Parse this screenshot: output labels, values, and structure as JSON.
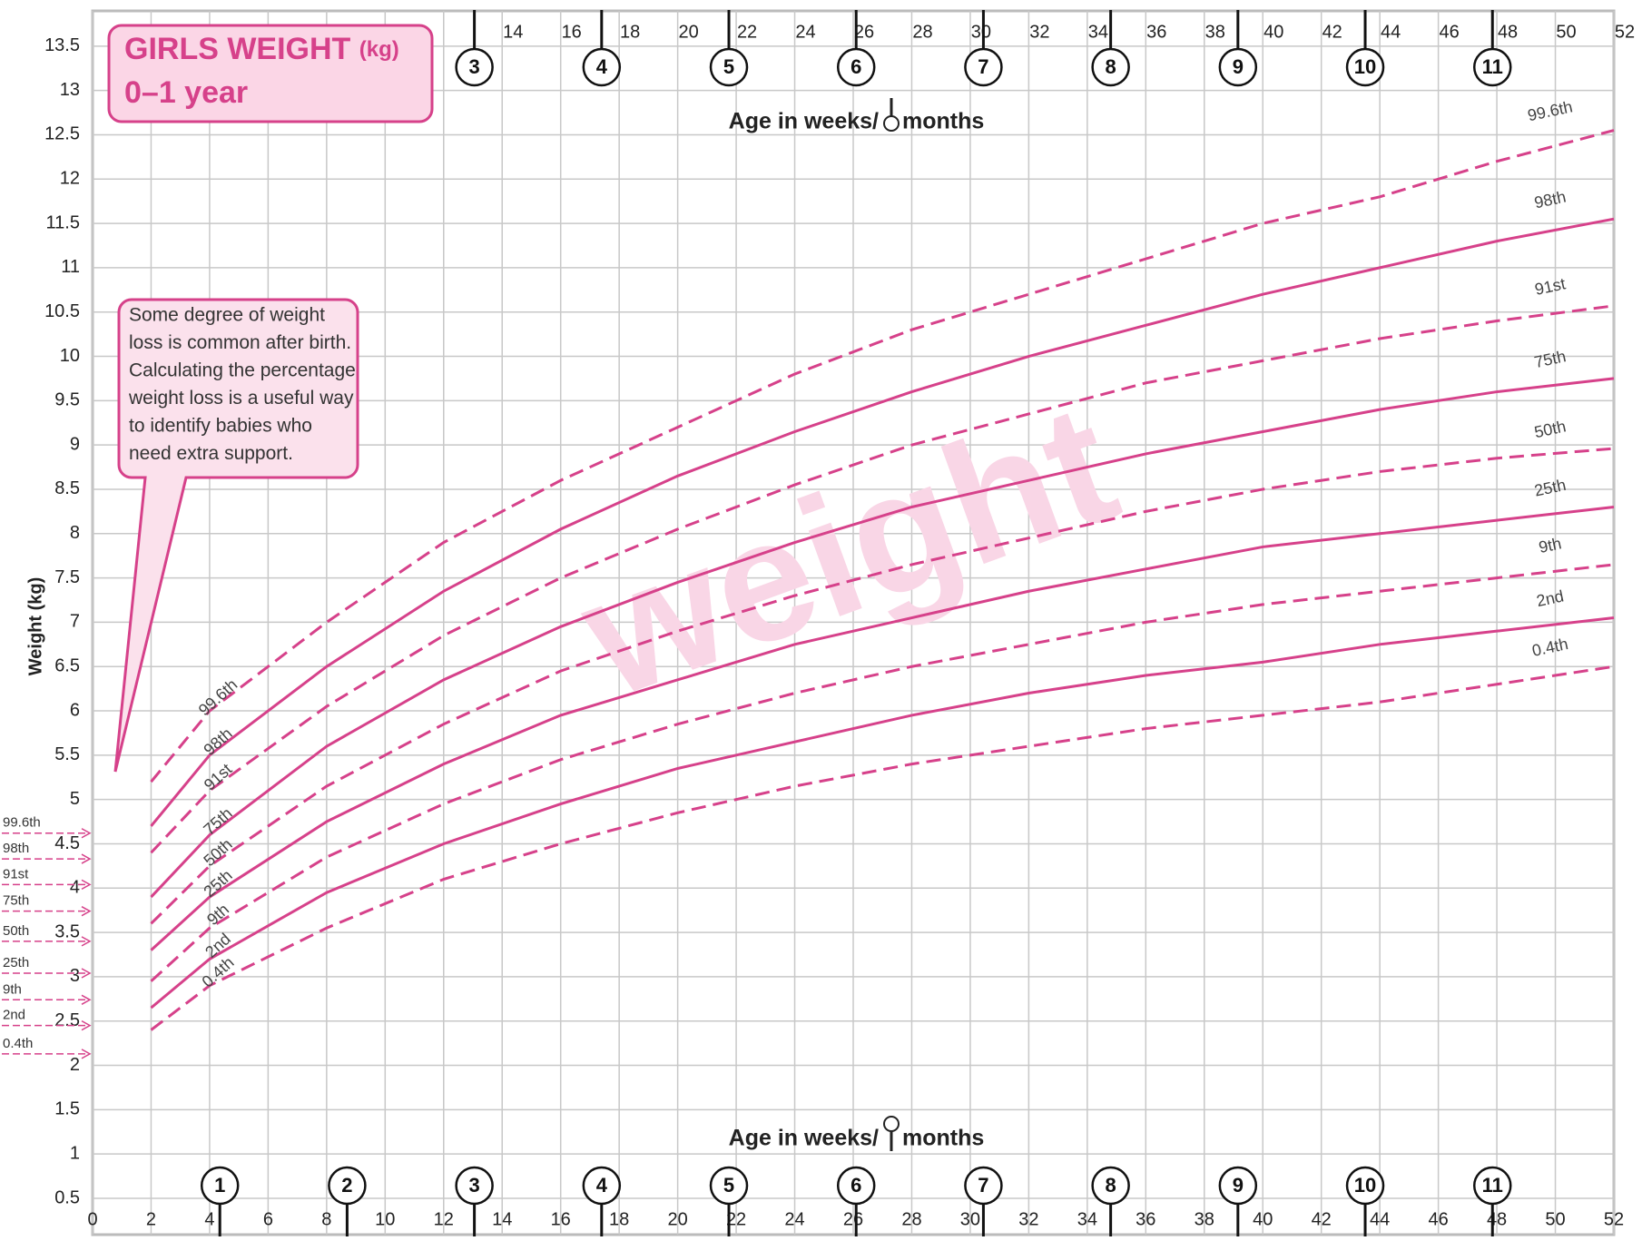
{
  "chart_data": {
    "type": "line",
    "title": "GIRLS WEIGHT",
    "title_unit": "(kg)",
    "subtitle": "0–1 year",
    "note": [
      "Some degree of weight",
      "loss is common after birth.",
      "Calculating the percentage",
      "weight loss is a useful way",
      "to identify babies who",
      "need extra support."
    ],
    "x_label": "Age in weeks/",
    "x_label_months": "months",
    "y_label": "Weight (kg)",
    "watermark": "weight",
    "color": "#d6418a",
    "x": [
      2,
      4,
      8,
      12,
      16,
      20,
      24,
      28,
      32,
      36,
      40,
      44,
      48,
      52
    ],
    "series": [
      {
        "name": "99.6th",
        "dashed": true,
        "values": [
          5.2,
          6.0,
          7.0,
          7.9,
          8.6,
          9.2,
          9.8,
          10.3,
          10.7,
          11.1,
          11.5,
          11.8,
          12.2,
          12.55
        ]
      },
      {
        "name": "98th",
        "dashed": false,
        "values": [
          4.7,
          5.5,
          6.5,
          7.35,
          8.05,
          8.65,
          9.15,
          9.6,
          10.0,
          10.35,
          10.7,
          11.0,
          11.3,
          11.55
        ]
      },
      {
        "name": "91st",
        "dashed": true,
        "values": [
          4.4,
          5.1,
          6.05,
          6.85,
          7.5,
          8.05,
          8.55,
          9.0,
          9.35,
          9.7,
          9.95,
          10.2,
          10.4,
          10.57
        ]
      },
      {
        "name": "75th",
        "dashed": false,
        "values": [
          3.9,
          4.6,
          5.6,
          6.35,
          6.95,
          7.45,
          7.9,
          8.3,
          8.6,
          8.9,
          9.15,
          9.4,
          9.6,
          9.75
        ]
      },
      {
        "name": "50th",
        "dashed": true,
        "values": [
          3.6,
          4.25,
          5.15,
          5.85,
          6.45,
          6.9,
          7.3,
          7.65,
          7.95,
          8.25,
          8.5,
          8.7,
          8.85,
          8.96
        ]
      },
      {
        "name": "25th",
        "dashed": false,
        "values": [
          3.3,
          3.9,
          4.75,
          5.4,
          5.95,
          6.35,
          6.75,
          7.05,
          7.35,
          7.6,
          7.85,
          8.0,
          8.15,
          8.3
        ]
      },
      {
        "name": "9th",
        "dashed": true,
        "values": [
          2.95,
          3.55,
          4.35,
          4.95,
          5.45,
          5.85,
          6.2,
          6.5,
          6.75,
          7.0,
          7.2,
          7.35,
          7.5,
          7.65
        ]
      },
      {
        "name": "2nd",
        "dashed": false,
        "values": [
          2.65,
          3.2,
          3.95,
          4.5,
          4.95,
          5.35,
          5.65,
          5.95,
          6.2,
          6.4,
          6.55,
          6.75,
          6.9,
          7.05
        ]
      },
      {
        "name": "0.4th",
        "dashed": true,
        "values": [
          2.4,
          2.9,
          3.55,
          4.1,
          4.5,
          4.85,
          5.15,
          5.4,
          5.6,
          5.8,
          5.95,
          6.1,
          6.3,
          6.5
        ]
      }
    ],
    "birth": {
      "labels": [
        "99.6th",
        "98th",
        "91st",
        "75th",
        "50th",
        "25th",
        "9th",
        "2nd",
        "0.4th"
      ],
      "values": [
        4.62,
        4.33,
        4.04,
        3.74,
        3.4,
        3.04,
        2.74,
        2.45,
        2.13
      ]
    },
    "month_ticks": [
      {
        "value": 4.35,
        "label": "1"
      },
      {
        "value": 8.7,
        "label": "2"
      },
      {
        "value": 13.05,
        "label": "3"
      },
      {
        "value": 17.4,
        "label": "4"
      },
      {
        "value": 21.75,
        "label": "5"
      },
      {
        "value": 26.1,
        "label": "6"
      },
      {
        "value": 30.45,
        "label": "7"
      },
      {
        "value": 34.8,
        "label": "8"
      },
      {
        "value": 39.15,
        "label": "9"
      },
      {
        "value": 43.5,
        "label": "10"
      },
      {
        "value": 47.85,
        "label": "11"
      }
    ],
    "xlim": [
      0,
      52
    ],
    "xticks": [
      0,
      2,
      4,
      6,
      8,
      10,
      12,
      14,
      16,
      18,
      20,
      22,
      24,
      26,
      28,
      30,
      32,
      34,
      36,
      38,
      40,
      42,
      44,
      46,
      48,
      50,
      52
    ],
    "ylim": [
      0.5,
      14
    ],
    "yticks": [
      0.5,
      1,
      1.5,
      2,
      2.5,
      3,
      3.5,
      4,
      4.5,
      5,
      5.5,
      6,
      6.5,
      7,
      7.5,
      8,
      8.5,
      9,
      9.5,
      10,
      10.5,
      11,
      11.5,
      12,
      12.5,
      13,
      13.5
    ],
    "grid": true
  }
}
